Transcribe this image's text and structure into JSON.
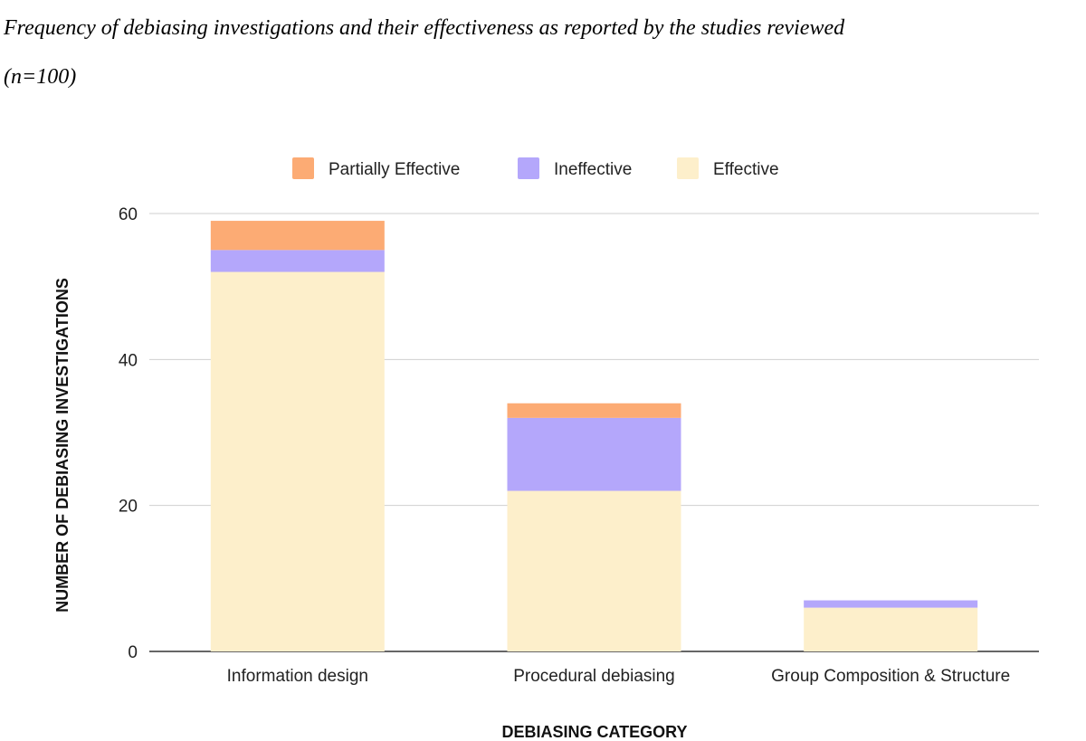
{
  "caption": {
    "line1": "Frequency of debiasing investigations and their effectiveness as reported by the studies reviewed",
    "line2": "(n=100)"
  },
  "chart_data": {
    "type": "bar",
    "stacked": true,
    "categories": [
      "Information design",
      "Procedural debiasing",
      "Group Composition & Structure"
    ],
    "series": [
      {
        "name": "Effective",
        "values": [
          52,
          22,
          6
        ],
        "color": "#fdefcb"
      },
      {
        "name": "Ineffective",
        "values": [
          3,
          10,
          1
        ],
        "color": "#b4a7fb"
      },
      {
        "name": "Partially Effective",
        "values": [
          4,
          2,
          0
        ],
        "color": "#fcab74"
      }
    ],
    "legend_order": [
      "Partially Effective",
      "Ineffective",
      "Effective"
    ],
    "legend_position": "top",
    "xlabel": "DEBIASING CATEGORY",
    "ylabel": "NUMBER OF DEBIASING INVESTIGATIONS",
    "ylim": [
      0,
      60
    ],
    "yticks": [
      0,
      20,
      40,
      60
    ],
    "grid": true
  }
}
